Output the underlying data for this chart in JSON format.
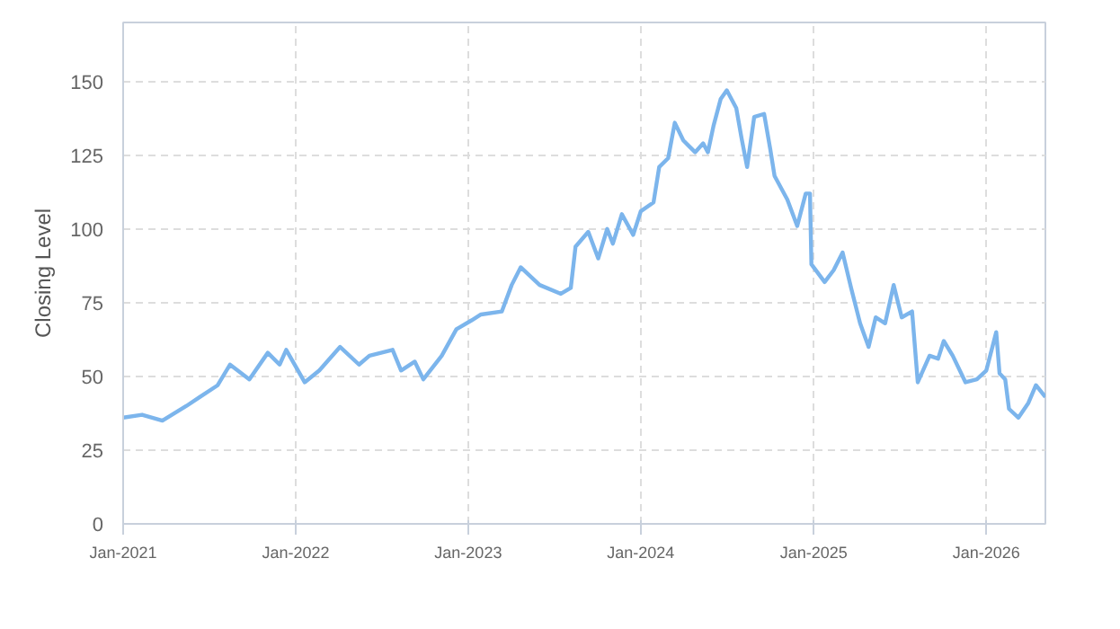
{
  "chart_data": {
    "type": "line",
    "ylabel": "Closing Level",
    "x": [
      "2021-01-01",
      "2021-02-10",
      "2021-03-25",
      "2021-05-15",
      "2021-06-12",
      "2021-07-20",
      "2021-08-15",
      "2021-09-25",
      "2021-11-03",
      "2021-11-28",
      "2021-12-12",
      "2022-01-20",
      "2022-02-20",
      "2022-04-05",
      "2022-05-15",
      "2022-06-06",
      "2022-07-25",
      "2022-08-12",
      "2022-09-10",
      "2022-09-28",
      "2022-11-06",
      "2022-12-07",
      "2023-01-08",
      "2023-01-28",
      "2023-03-13",
      "2023-04-03",
      "2023-04-22",
      "2023-06-01",
      "2023-07-16",
      "2023-08-06",
      "2023-08-16",
      "2023-09-12",
      "2023-10-03",
      "2023-10-22",
      "2023-11-03",
      "2023-11-22",
      "2023-12-16",
      "2024-01-01",
      "2024-01-28",
      "2024-02-09",
      "2024-02-28",
      "2024-03-13",
      "2024-03-31",
      "2024-04-25",
      "2024-05-12",
      "2024-05-22",
      "2024-06-03",
      "2024-06-18",
      "2024-07-01",
      "2024-07-21",
      "2024-08-01",
      "2024-08-13",
      "2024-08-28",
      "2024-09-18",
      "2024-10-01",
      "2024-10-10",
      "2024-11-06",
      "2024-11-27",
      "2024-12-15",
      "2024-12-24",
      "2024-12-27",
      "2025-01-24",
      "2025-02-12",
      "2025-03-03",
      "2025-03-21",
      "2025-04-09",
      "2025-04-27",
      "2025-05-12",
      "2025-06-01",
      "2025-06-19",
      "2025-07-06",
      "2025-07-28",
      "2025-08-09",
      "2025-09-03",
      "2025-09-21",
      "2025-10-03",
      "2025-10-22",
      "2025-11-18",
      "2025-12-12",
      "2026-01-01",
      "2026-01-22",
      "2026-01-29",
      "2026-02-10",
      "2026-02-18",
      "2026-03-10",
      "2026-03-31",
      "2026-04-16",
      "2026-05-06"
    ],
    "series": [
      {
        "color": "#7cb5ec",
        "values": [
          36,
          37,
          35,
          40,
          43,
          47,
          54,
          49,
          58,
          54,
          59,
          48,
          52,
          60,
          54,
          57,
          59,
          52,
          55,
          49,
          57,
          66,
          69,
          71,
          72,
          81,
          87,
          81,
          78,
          80,
          94,
          99,
          90,
          100,
          95,
          105,
          98,
          106,
          109,
          121,
          124,
          136,
          130,
          126,
          129,
          126,
          135,
          144,
          147,
          141,
          131,
          121,
          138,
          139,
          127,
          118,
          110,
          101,
          112,
          112,
          88,
          82,
          86,
          92,
          80,
          68,
          60,
          70,
          68,
          81,
          70,
          72,
          48,
          57,
          56,
          62,
          57,
          48,
          49,
          52,
          65,
          51,
          49,
          39,
          36,
          41,
          47,
          43
        ]
      }
    ],
    "xlim": [
      "2021-01-01",
      "2026-05-06"
    ],
    "xticks": [
      {
        "value": "2021-01-01",
        "label": "Jan-2021"
      },
      {
        "value": "2022-01-01",
        "label": "Jan-2022"
      },
      {
        "value": "2023-01-01",
        "label": "Jan-2023"
      },
      {
        "value": "2024-01-01",
        "label": "Jan-2024"
      },
      {
        "value": "2025-01-01",
        "label": "Jan-2025"
      },
      {
        "value": "2026-01-01",
        "label": "Jan-2026"
      }
    ],
    "ylim": [
      0,
      170
    ],
    "yticks": [
      0,
      25,
      50,
      75,
      100,
      125,
      150
    ],
    "grid": true,
    "marker": "none",
    "line_style": "solid"
  }
}
